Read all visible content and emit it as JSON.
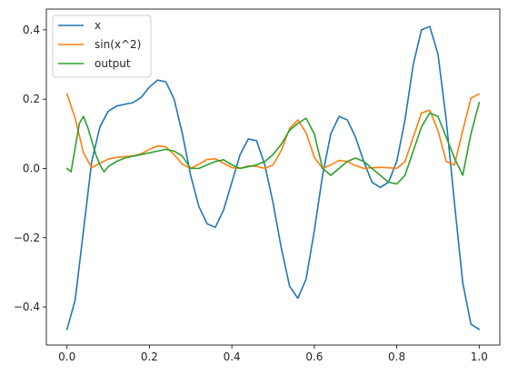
{
  "chart_data": {
    "type": "line",
    "title": "",
    "xlabel": "",
    "ylabel": "",
    "xlim": [
      -0.05,
      1.05
    ],
    "ylim": [
      -0.51,
      0.46
    ],
    "grid": false,
    "legend_position": "top-left",
    "x_ticks": [
      0.0,
      0.2,
      0.4,
      0.6,
      0.8,
      1.0
    ],
    "x_tick_labels": [
      "0.0",
      "0.2",
      "0.4",
      "0.6",
      "0.8",
      "1.0"
    ],
    "y_ticks": [
      -0.4,
      -0.2,
      0.0,
      0.2,
      0.4
    ],
    "y_tick_labels": [
      "−0.4",
      "−0.2",
      "0.0",
      "0.2",
      "0.4"
    ],
    "series": [
      {
        "name": "x",
        "color": "#1f77b4",
        "x": [
          0.0,
          0.02,
          0.04,
          0.06,
          0.08,
          0.1,
          0.12,
          0.14,
          0.16,
          0.18,
          0.2,
          0.22,
          0.24,
          0.26,
          0.28,
          0.3,
          0.32,
          0.34,
          0.36,
          0.38,
          0.4,
          0.42,
          0.44,
          0.46,
          0.48,
          0.5,
          0.52,
          0.54,
          0.56,
          0.58,
          0.6,
          0.62,
          0.64,
          0.66,
          0.68,
          0.7,
          0.72,
          0.74,
          0.76,
          0.78,
          0.8,
          0.82,
          0.84,
          0.86,
          0.88,
          0.9,
          0.92,
          0.94,
          0.96,
          0.98,
          1.0
        ],
        "values": [
          -0.465,
          -0.38,
          -0.18,
          0.02,
          0.12,
          0.165,
          0.18,
          0.185,
          0.19,
          0.205,
          0.235,
          0.255,
          0.25,
          0.2,
          0.1,
          -0.02,
          -0.11,
          -0.16,
          -0.17,
          -0.12,
          -0.04,
          0.04,
          0.085,
          0.08,
          0.01,
          -0.1,
          -0.23,
          -0.34,
          -0.375,
          -0.32,
          -0.18,
          -0.02,
          0.1,
          0.15,
          0.14,
          0.09,
          0.02,
          -0.04,
          -0.055,
          -0.04,
          0.02,
          0.14,
          0.3,
          0.4,
          0.41,
          0.33,
          0.14,
          -0.1,
          -0.33,
          -0.45,
          -0.465
        ]
      },
      {
        "name": "sin(x^2)",
        "color": "#ff7f0e",
        "x": [
          0.0,
          0.02,
          0.04,
          0.06,
          0.08,
          0.1,
          0.12,
          0.14,
          0.16,
          0.18,
          0.2,
          0.22,
          0.24,
          0.26,
          0.28,
          0.3,
          0.32,
          0.34,
          0.36,
          0.38,
          0.4,
          0.42,
          0.44,
          0.46,
          0.48,
          0.5,
          0.52,
          0.54,
          0.56,
          0.58,
          0.6,
          0.62,
          0.64,
          0.66,
          0.68,
          0.7,
          0.72,
          0.74,
          0.76,
          0.78,
          0.8,
          0.82,
          0.84,
          0.86,
          0.88,
          0.9,
          0.92,
          0.94,
          0.96,
          0.98,
          1.0
        ],
        "values": [
          0.215,
          0.145,
          0.045,
          0.002,
          0.015,
          0.027,
          0.032,
          0.034,
          0.036,
          0.042,
          0.055,
          0.065,
          0.062,
          0.04,
          0.012,
          0.0,
          0.012,
          0.026,
          0.028,
          0.015,
          0.002,
          0.0,
          0.007,
          0.006,
          0.0,
          0.01,
          0.052,
          0.115,
          0.14,
          0.103,
          0.032,
          0.0,
          0.01,
          0.023,
          0.02,
          0.008,
          0.0,
          0.002,
          0.003,
          0.002,
          0.0,
          0.02,
          0.09,
          0.16,
          0.168,
          0.109,
          0.02,
          0.01,
          0.109,
          0.203,
          0.215
        ]
      },
      {
        "name": "output",
        "color": "#2ca02c",
        "x": [
          0.0,
          0.01,
          0.02,
          0.03,
          0.04,
          0.05,
          0.06,
          0.07,
          0.08,
          0.09,
          0.1,
          0.12,
          0.14,
          0.16,
          0.18,
          0.2,
          0.22,
          0.24,
          0.26,
          0.28,
          0.3,
          0.32,
          0.34,
          0.36,
          0.38,
          0.4,
          0.42,
          0.44,
          0.46,
          0.48,
          0.5,
          0.52,
          0.54,
          0.56,
          0.58,
          0.6,
          0.62,
          0.64,
          0.66,
          0.68,
          0.7,
          0.72,
          0.74,
          0.76,
          0.78,
          0.8,
          0.82,
          0.84,
          0.86,
          0.88,
          0.9,
          0.92,
          0.94,
          0.96,
          0.98,
          1.0
        ],
        "values": [
          0.0,
          -0.01,
          0.06,
          0.13,
          0.15,
          0.12,
          0.08,
          0.04,
          0.01,
          -0.01,
          0.005,
          0.02,
          0.03,
          0.035,
          0.04,
          0.045,
          0.05,
          0.055,
          0.05,
          0.035,
          0.0,
          0.0,
          0.01,
          0.02,
          0.025,
          0.01,
          0.0,
          0.005,
          0.01,
          0.02,
          0.04,
          0.07,
          0.11,
          0.13,
          0.145,
          0.1,
          0.0,
          -0.02,
          0.0,
          0.02,
          0.03,
          0.02,
          0.0,
          -0.02,
          -0.04,
          -0.045,
          -0.02,
          0.05,
          0.12,
          0.16,
          0.15,
          0.09,
          0.03,
          -0.02,
          0.1,
          0.19
        ]
      }
    ]
  }
}
